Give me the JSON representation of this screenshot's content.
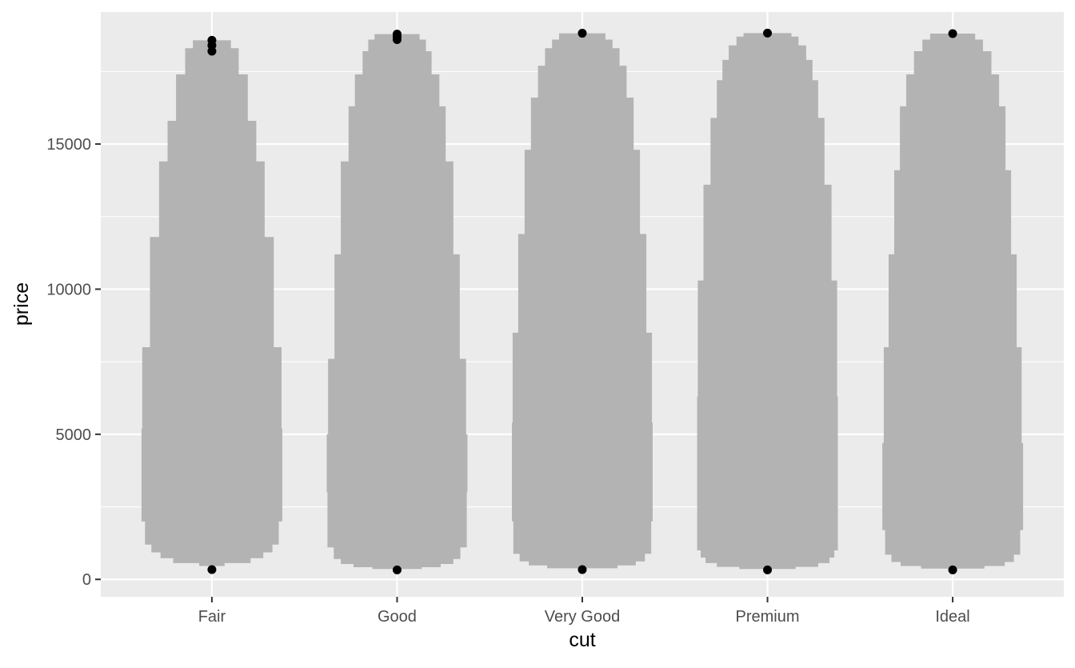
{
  "chart_data": {
    "type": "violin",
    "title": "",
    "xlabel": "cut",
    "ylabel": "price",
    "categories": [
      "Fair",
      "Good",
      "Very Good",
      "Premium",
      "Ideal"
    ],
    "ylim": [
      -600,
      19550
    ],
    "yticks": [
      0,
      5000,
      10000,
      15000
    ],
    "yticklabels": [
      "0",
      "5000",
      "10000",
      "15000"
    ],
    "grid": true,
    "legend": "none",
    "colors": {
      "panel": "#ebebeb",
      "grid": "#ffffff",
      "violin_fill": "#b3b3b3",
      "point": "#000000",
      "tick": "#333333",
      "tick_text": "#4d4d4d"
    },
    "violins": [
      {
        "category": "Fair",
        "min": 337,
        "max": 18574,
        "profile": [
          {
            "price": 337,
            "width": 0.0
          },
          {
            "price": 460,
            "width": 0.18
          },
          {
            "price": 560,
            "width": 0.55
          },
          {
            "price": 730,
            "width": 0.73
          },
          {
            "price": 930,
            "width": 0.86
          },
          {
            "price": 1200,
            "width": 0.95
          },
          {
            "price": 2000,
            "width": 1.0
          },
          {
            "price": 3300,
            "width": 1.0
          },
          {
            "price": 5200,
            "width": 0.99
          },
          {
            "price": 8000,
            "width": 0.88
          },
          {
            "price": 11800,
            "width": 0.75
          },
          {
            "price": 14400,
            "width": 0.63
          },
          {
            "price": 15800,
            "width": 0.51
          },
          {
            "price": 17400,
            "width": 0.38
          },
          {
            "price": 18300,
            "width": 0.27
          },
          {
            "price": 18574,
            "width": 0.0
          }
        ],
        "outliers": [
          18574,
          18400,
          18200
        ]
      },
      {
        "category": "Good",
        "min": 327,
        "max": 18788,
        "profile": [
          {
            "price": 327,
            "width": 0.0
          },
          {
            "price": 360,
            "width": 0.35
          },
          {
            "price": 420,
            "width": 0.62
          },
          {
            "price": 530,
            "width": 0.8
          },
          {
            "price": 700,
            "width": 0.9
          },
          {
            "price": 1100,
            "width": 0.99
          },
          {
            "price": 3000,
            "width": 1.0
          },
          {
            "price": 5000,
            "width": 0.98
          },
          {
            "price": 7600,
            "width": 0.89
          },
          {
            "price": 11200,
            "width": 0.8
          },
          {
            "price": 14400,
            "width": 0.69
          },
          {
            "price": 16300,
            "width": 0.6
          },
          {
            "price": 17400,
            "width": 0.49
          },
          {
            "price": 18200,
            "width": 0.41
          },
          {
            "price": 18600,
            "width": 0.32
          },
          {
            "price": 18788,
            "width": 0.0
          }
        ],
        "outliers": [
          18788,
          18700,
          18600
        ]
      },
      {
        "category": "Very Good",
        "min": 336,
        "max": 18818,
        "profile": [
          {
            "price": 336,
            "width": 0.0
          },
          {
            "price": 380,
            "width": 0.5
          },
          {
            "price": 480,
            "width": 0.76
          },
          {
            "price": 620,
            "width": 0.89
          },
          {
            "price": 880,
            "width": 0.98
          },
          {
            "price": 2000,
            "width": 1.0
          },
          {
            "price": 5400,
            "width": 0.99
          },
          {
            "price": 8500,
            "width": 0.91
          },
          {
            "price": 11900,
            "width": 0.82
          },
          {
            "price": 14800,
            "width": 0.73
          },
          {
            "price": 16600,
            "width": 0.63
          },
          {
            "price": 17700,
            "width": 0.53
          },
          {
            "price": 18300,
            "width": 0.43
          },
          {
            "price": 18600,
            "width": 0.33
          },
          {
            "price": 18818,
            "width": 0.0
          }
        ],
        "outliers": [
          18818
        ]
      },
      {
        "category": "Premium",
        "min": 326,
        "max": 18823,
        "profile": [
          {
            "price": 326,
            "width": 0.0
          },
          {
            "price": 360,
            "width": 0.4
          },
          {
            "price": 430,
            "width": 0.72
          },
          {
            "price": 560,
            "width": 0.88
          },
          {
            "price": 750,
            "width": 0.95
          },
          {
            "price": 1000,
            "width": 1.0
          },
          {
            "price": 3000,
            "width": 1.0
          },
          {
            "price": 6300,
            "width": 0.99
          },
          {
            "price": 10300,
            "width": 0.91
          },
          {
            "price": 13600,
            "width": 0.81
          },
          {
            "price": 15900,
            "width": 0.72
          },
          {
            "price": 17200,
            "width": 0.64
          },
          {
            "price": 17900,
            "width": 0.55
          },
          {
            "price": 18400,
            "width": 0.44
          },
          {
            "price": 18700,
            "width": 0.34
          },
          {
            "price": 18823,
            "width": 0.0
          }
        ],
        "outliers": [
          18823
        ]
      },
      {
        "category": "Ideal",
        "min": 326,
        "max": 18806,
        "profile": [
          {
            "price": 326,
            "width": 0.0
          },
          {
            "price": 370,
            "width": 0.45
          },
          {
            "price": 460,
            "width": 0.74
          },
          {
            "price": 600,
            "width": 0.87
          },
          {
            "price": 850,
            "width": 0.96
          },
          {
            "price": 1700,
            "width": 1.0
          },
          {
            "price": 4700,
            "width": 0.98
          },
          {
            "price": 8000,
            "width": 0.91
          },
          {
            "price": 11200,
            "width": 0.83
          },
          {
            "price": 14100,
            "width": 0.75
          },
          {
            "price": 16300,
            "width": 0.66
          },
          {
            "price": 17400,
            "width": 0.55
          },
          {
            "price": 18200,
            "width": 0.43
          },
          {
            "price": 18600,
            "width": 0.32
          },
          {
            "price": 18806,
            "width": 0.0
          }
        ],
        "outliers": [
          18806
        ]
      }
    ]
  }
}
